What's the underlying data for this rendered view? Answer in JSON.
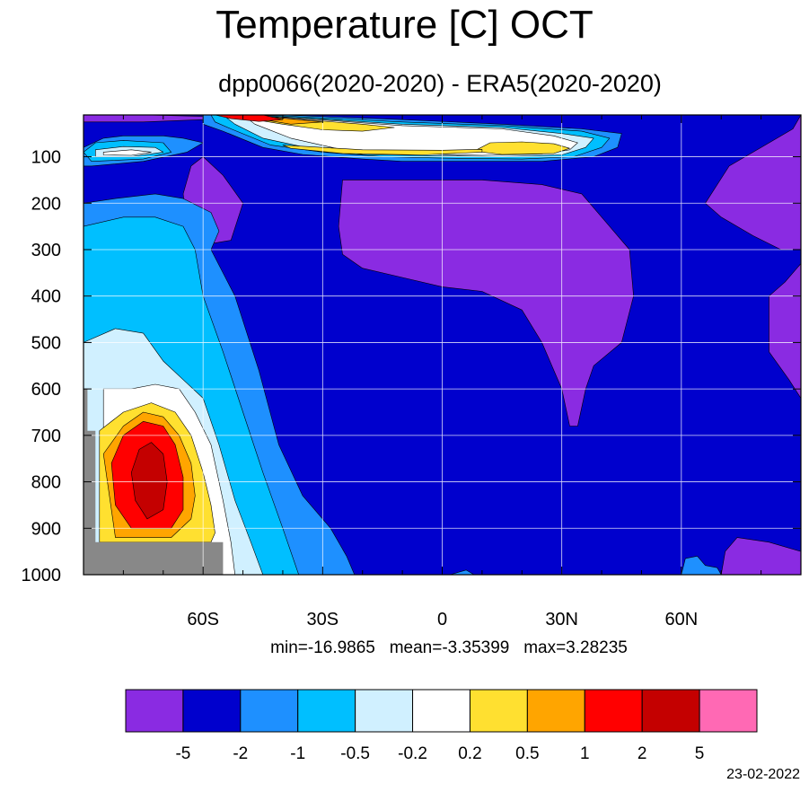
{
  "title": "Temperature [C] OCT",
  "subtitle": "dpp0066(2020-2020) - ERA5(2020-2020)",
  "stats": {
    "min_label": "min=-16.9865",
    "mean_label": "mean=-3.35399",
    "max_label": "max=3.28235"
  },
  "date": "23-02-2022",
  "chart_data": {
    "type": "heatmap",
    "title": "Temperature [C] OCT",
    "subtitle": "dpp0066(2020-2020) - ERA5(2020-2020)",
    "x_ticks": [
      {
        "value": -60,
        "label": "60S"
      },
      {
        "value": -30,
        "label": "30S"
      },
      {
        "value": 0,
        "label": "0"
      },
      {
        "value": 30,
        "label": "30N"
      },
      {
        "value": 60,
        "label": "60N"
      }
    ],
    "y_ticks": [
      100,
      200,
      300,
      400,
      500,
      600,
      700,
      800,
      900,
      1000
    ],
    "xlim": [
      -90,
      90
    ],
    "ylim": [
      1000,
      10
    ],
    "grid": true,
    "missing_color": "#888888",
    "contour_levels": [
      "-5",
      "-2",
      "-1",
      "-0.5",
      "-0.2",
      "0.2",
      "0.5",
      "1",
      "2",
      "5"
    ],
    "level_colors": [
      "#8a2be2",
      "#0000cd",
      "#1e90ff",
      "#00bfff",
      "#d0f0ff",
      "#ffffff",
      "#ffe030",
      "#ffa500",
      "#ff0000",
      "#c40000",
      "#ff69b4"
    ],
    "regions": [
      {
        "level": 0,
        "points": [
          [
            -90,
            10
          ],
          [
            -75,
            10
          ],
          [
            -60,
            13
          ],
          [
            -60,
            20
          ],
          [
            -75,
            25
          ],
          [
            -90,
            25
          ]
        ]
      },
      {
        "level": 0,
        "points": [
          [
            -60,
            100
          ],
          [
            -55,
            140
          ],
          [
            -50,
            200
          ],
          [
            -53,
            280
          ],
          [
            -60,
            290
          ],
          [
            -64,
            250
          ],
          [
            -65,
            180
          ],
          [
            -63,
            120
          ]
        ]
      },
      {
        "level": 0,
        "points": [
          [
            -25,
            150
          ],
          [
            -10,
            150
          ],
          [
            10,
            150
          ],
          [
            25,
            160
          ],
          [
            35,
            180
          ],
          [
            42,
            250
          ],
          [
            47,
            300
          ],
          [
            48,
            400
          ],
          [
            45,
            500
          ],
          [
            38,
            550
          ],
          [
            36,
            600
          ],
          [
            34,
            680
          ],
          [
            32,
            680
          ],
          [
            30,
            600
          ],
          [
            25,
            500
          ],
          [
            20,
            430
          ],
          [
            10,
            390
          ],
          [
            0,
            380
          ],
          [
            -10,
            360
          ],
          [
            -20,
            340
          ],
          [
            -25,
            310
          ],
          [
            -26,
            250
          ]
        ]
      },
      {
        "level": 0,
        "points": [
          [
            66,
            200
          ],
          [
            72,
            120
          ],
          [
            80,
            80
          ],
          [
            88,
            40
          ],
          [
            90,
            10
          ],
          [
            90,
            300
          ],
          [
            85,
            300
          ],
          [
            78,
            270
          ],
          [
            70,
            230
          ]
        ]
      },
      {
        "level": 0,
        "points": [
          [
            90,
            330
          ],
          [
            86,
            370
          ],
          [
            82,
            400
          ],
          [
            82,
            520
          ],
          [
            87,
            580
          ],
          [
            90,
            620
          ]
        ]
      },
      {
        "level": 0,
        "points": [
          [
            70,
            1000
          ],
          [
            71,
            950
          ],
          [
            74,
            920
          ],
          [
            82,
            930
          ],
          [
            90,
            950
          ],
          [
            90,
            1000
          ]
        ]
      },
      {
        "level": 2,
        "points": [
          [
            -90,
            80
          ],
          [
            -85,
            60
          ],
          [
            -80,
            55
          ],
          [
            -70,
            55
          ],
          [
            -65,
            60
          ],
          [
            -60,
            70
          ],
          [
            -64,
            90
          ],
          [
            -75,
            110
          ],
          [
            -88,
            120
          ],
          [
            -90,
            120
          ]
        ]
      },
      {
        "level": 2,
        "points": [
          [
            -90,
            200
          ],
          [
            -82,
            190
          ],
          [
            -72,
            180
          ],
          [
            -65,
            190
          ],
          [
            -58,
            220
          ],
          [
            -56,
            260
          ],
          [
            -58,
            300
          ],
          [
            -52,
            400
          ],
          [
            -46,
            560
          ],
          [
            -41,
            720
          ],
          [
            -35,
            830
          ],
          [
            -28,
            900
          ],
          [
            -24,
            960
          ],
          [
            -22,
            1000
          ],
          [
            -90,
            1000
          ]
        ]
      },
      {
        "level": 2,
        "points": [
          [
            -60,
            10
          ],
          [
            -40,
            10
          ],
          [
            -10,
            20
          ],
          [
            15,
            30
          ],
          [
            35,
            40
          ],
          [
            45,
            50
          ],
          [
            44,
            80
          ],
          [
            38,
            100
          ],
          [
            25,
            110
          ],
          [
            10,
            110
          ],
          [
            -10,
            110
          ],
          [
            -20,
            105
          ],
          [
            -35,
            95
          ],
          [
            -45,
            80
          ],
          [
            -55,
            45
          ],
          [
            -60,
            30
          ]
        ]
      },
      {
        "level": 2,
        "points": [
          [
            2,
            1000
          ],
          [
            6,
            990
          ],
          [
            8,
            1000
          ]
        ]
      },
      {
        "level": 2,
        "points": [
          [
            60,
            1000
          ],
          [
            61,
            965
          ],
          [
            64,
            960
          ],
          [
            66,
            980
          ],
          [
            69,
            985
          ],
          [
            70,
            1000
          ]
        ]
      },
      {
        "level": 3,
        "points": [
          [
            -90,
            250
          ],
          [
            -80,
            230
          ],
          [
            -72,
            230
          ],
          [
            -65,
            250
          ],
          [
            -62,
            300
          ],
          [
            -60,
            400
          ],
          [
            -55,
            520
          ],
          [
            -50,
            650
          ],
          [
            -45,
            780
          ],
          [
            -40,
            900
          ],
          [
            -36,
            1000
          ],
          [
            -90,
            1000
          ]
        ]
      },
      {
        "level": 3,
        "points": [
          [
            -90,
            90
          ],
          [
            -87,
            70
          ],
          [
            -80,
            65
          ],
          [
            -70,
            70
          ],
          [
            -68,
            90
          ],
          [
            -75,
            105
          ],
          [
            -88,
            110
          ]
        ]
      },
      {
        "level": 3,
        "points": [
          [
            -58,
            10
          ],
          [
            -40,
            12
          ],
          [
            -10,
            25
          ],
          [
            15,
            33
          ],
          [
            35,
            45
          ],
          [
            42,
            60
          ],
          [
            40,
            80
          ],
          [
            33,
            100
          ],
          [
            20,
            105
          ],
          [
            0,
            103
          ],
          [
            -15,
            100
          ],
          [
            -30,
            90
          ],
          [
            -43,
            75
          ],
          [
            -53,
            40
          ],
          [
            -57,
            25
          ]
        ]
      },
      {
        "level": 4,
        "points": [
          [
            -90,
            500
          ],
          [
            -82,
            470
          ],
          [
            -75,
            480
          ],
          [
            -70,
            540
          ],
          [
            -65,
            580
          ],
          [
            -60,
            620
          ],
          [
            -56,
            720
          ],
          [
            -52,
            840
          ],
          [
            -48,
            930
          ],
          [
            -45,
            1000
          ],
          [
            -90,
            1000
          ]
        ]
      },
      {
        "level": 4,
        "points": [
          [
            -87,
            85
          ],
          [
            -80,
            78
          ],
          [
            -72,
            80
          ],
          [
            -70,
            90
          ],
          [
            -78,
            100
          ],
          [
            -87,
            100
          ]
        ]
      },
      {
        "level": 4,
        "points": [
          [
            -55,
            10
          ],
          [
            -40,
            14
          ],
          [
            -10,
            30
          ],
          [
            15,
            37
          ],
          [
            30,
            50
          ],
          [
            38,
            60
          ],
          [
            36,
            80
          ],
          [
            30,
            96
          ],
          [
            15,
            100
          ],
          [
            0,
            98
          ],
          [
            -20,
            95
          ],
          [
            -32,
            84
          ],
          [
            -45,
            60
          ],
          [
            -52,
            30
          ]
        ]
      },
      {
        "level": 5,
        "points": [
          [
            -85,
            600
          ],
          [
            -78,
            600
          ],
          [
            -72,
            590
          ],
          [
            -66,
            600
          ],
          [
            -62,
            650
          ],
          [
            -58,
            720
          ],
          [
            -55,
            840
          ],
          [
            -53,
            930
          ],
          [
            -52,
            1000
          ],
          [
            -85,
            1000
          ]
        ]
      },
      {
        "level": 5,
        "points": [
          [
            -85,
            90
          ],
          [
            -78,
            85
          ],
          [
            -73,
            90
          ],
          [
            -78,
            97
          ],
          [
            -85,
            96
          ]
        ]
      },
      {
        "level": 5,
        "points": [
          [
            -50,
            10
          ],
          [
            -38,
            16
          ],
          [
            -10,
            33
          ],
          [
            15,
            40
          ],
          [
            28,
            55
          ],
          [
            34,
            70
          ],
          [
            32,
            85
          ],
          [
            25,
            94
          ],
          [
            10,
            97
          ],
          [
            -10,
            93
          ],
          [
            -25,
            85
          ],
          [
            -38,
            60
          ],
          [
            -47,
            30
          ]
        ]
      },
      {
        "level": 6,
        "points": [
          [
            -86,
            690
          ],
          [
            -80,
            650
          ],
          [
            -73,
            630
          ],
          [
            -67,
            650
          ],
          [
            -63,
            700
          ],
          [
            -60,
            780
          ],
          [
            -58,
            850
          ],
          [
            -57,
            910
          ],
          [
            -58,
            930
          ],
          [
            -86,
            930
          ]
        ]
      },
      {
        "level": 6,
        "points": [
          [
            -50,
            10
          ],
          [
            -38,
            18
          ],
          [
            -20,
            30
          ],
          [
            -12,
            37
          ],
          [
            -20,
            45
          ],
          [
            -30,
            42
          ],
          [
            -40,
            30
          ],
          [
            -47,
            20
          ]
        ]
      },
      {
        "level": 6,
        "points": [
          [
            12,
            70
          ],
          [
            20,
            68
          ],
          [
            28,
            72
          ],
          [
            32,
            82
          ],
          [
            28,
            93
          ],
          [
            15,
            95
          ],
          [
            8,
            88
          ]
        ]
      },
      {
        "level": 6,
        "points": [
          [
            -40,
            75
          ],
          [
            -20,
            85
          ],
          [
            0,
            86
          ],
          [
            10,
            84
          ],
          [
            10,
            90
          ],
          [
            -5,
            96
          ],
          [
            -25,
            93
          ],
          [
            -38,
            82
          ]
        ]
      },
      {
        "level": 7,
        "points": [
          [
            -85,
            740
          ],
          [
            -80,
            680
          ],
          [
            -75,
            650
          ],
          [
            -70,
            660
          ],
          [
            -66,
            700
          ],
          [
            -63,
            760
          ],
          [
            -62,
            830
          ],
          [
            -63,
            880
          ],
          [
            -68,
            920
          ],
          [
            -82,
            920
          ]
        ]
      },
      {
        "level": 7,
        "points": [
          [
            -50,
            10
          ],
          [
            -40,
            17
          ],
          [
            -30,
            25
          ],
          [
            -38,
            30
          ],
          [
            -45,
            20
          ]
        ]
      },
      {
        "level": 8,
        "points": [
          [
            -83,
            760
          ],
          [
            -80,
            700
          ],
          [
            -75,
            670
          ],
          [
            -70,
            680
          ],
          [
            -67,
            720
          ],
          [
            -65,
            790
          ],
          [
            -65,
            860
          ],
          [
            -68,
            900
          ],
          [
            -78,
            900
          ],
          [
            -82,
            850
          ]
        ]
      },
      {
        "level": 8,
        "points": [
          [
            -57,
            10
          ],
          [
            -45,
            10
          ],
          [
            -40,
            20
          ],
          [
            -46,
            24
          ],
          [
            -53,
            18
          ]
        ]
      },
      {
        "level": 9,
        "points": [
          [
            -78,
            780
          ],
          [
            -76,
            730
          ],
          [
            -73,
            715
          ],
          [
            -70,
            740
          ],
          [
            -69,
            800
          ],
          [
            -70,
            860
          ],
          [
            -74,
            880
          ],
          [
            -77,
            840
          ]
        ]
      }
    ],
    "missing_regions": [
      {
        "points": [
          [
            -90,
            600
          ],
          [
            -89,
            600
          ],
          [
            -89,
            690
          ],
          [
            -87,
            690
          ],
          [
            -87,
            930
          ],
          [
            -55,
            930
          ],
          [
            -55,
            1000
          ],
          [
            -90,
            1000
          ]
        ]
      }
    ],
    "stats": {
      "min": -16.9865,
      "mean": -3.35399,
      "max": 3.28235
    }
  }
}
